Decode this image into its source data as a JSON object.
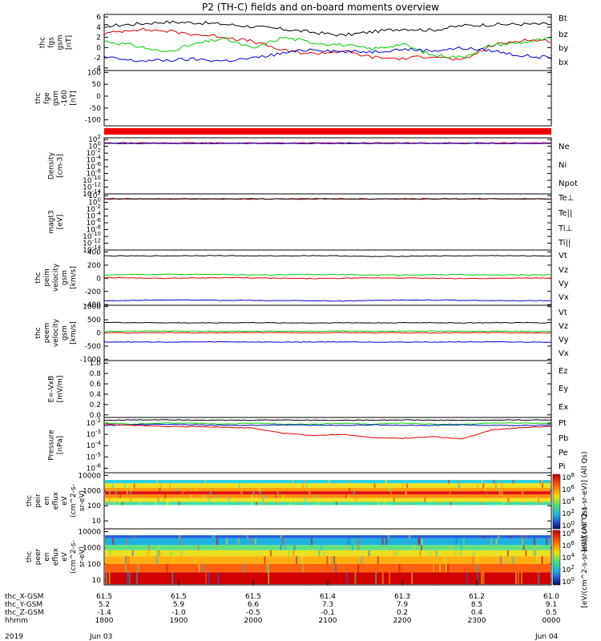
{
  "title": "P2 (TH-C) fields and on-board moments overview",
  "chart_data": [
    {
      "type": "line",
      "ylabel_lines": [
        "thc",
        "fgs",
        "gsm",
        "[nT]"
      ],
      "yticks": [
        "6",
        "4",
        "2",
        "0",
        "-2",
        "-4"
      ],
      "ylim": [
        -4.5,
        6.5
      ],
      "legend": [
        {
          "label": "Bt",
          "color": "#000000"
        },
        {
          "label": "bz",
          "color": "#dd0000"
        },
        {
          "label": "by",
          "color": "#00cc00"
        },
        {
          "label": "bx",
          "color": "#0000cc"
        }
      ],
      "series": [
        {
          "color": "#000000",
          "values": [
            4.2,
            4.6,
            5.0,
            4.9,
            4.6,
            4.1,
            3.6,
            3.0,
            2.4,
            3.1,
            3.7,
            3.4,
            4.3,
            4.5,
            4.6,
            4.6
          ]
        },
        {
          "color": "#dd0000",
          "values": [
            2.7,
            3.6,
            3.3,
            2.6,
            2.1,
            1.2,
            -0.6,
            -1.2,
            -0.7,
            -1.9,
            -2.2,
            -1.6,
            -2.6,
            0.4,
            1.5,
            1.3
          ]
        },
        {
          "color": "#00cc00",
          "values": [
            1.3,
            0.4,
            -0.9,
            0.6,
            1.8,
            -0.2,
            2.0,
            1.0,
            0.5,
            -0.3,
            0.7,
            -1.5,
            -1.9,
            0.5,
            1.0,
            1.8
          ]
        },
        {
          "color": "#0000cc",
          "values": [
            -1.9,
            -2.6,
            -2.5,
            -2.3,
            -2.6,
            -2.1,
            -1.1,
            -0.3,
            -0.8,
            -0.8,
            -0.3,
            -0.6,
            -0.1,
            -0.6,
            -1.6,
            -2.0
          ]
        }
      ]
    },
    {
      "type": "line",
      "ylabel_lines": [
        "thc",
        "fge",
        "gsm",
        "-160",
        "[nT]"
      ],
      "yticks": [
        "100",
        "50",
        "0",
        "-50",
        "-100"
      ],
      "ylim": [
        -125,
        108
      ],
      "legend": [],
      "series": []
    },
    {
      "type": "line",
      "ylabel_lines": [
        "Density",
        "[cm-3]"
      ],
      "yticks": [
        "10^2",
        "10^0",
        "10^-2",
        "10^-4",
        "10^-6",
        "10^-8",
        "10^-10",
        "10^-12",
        "10^-14"
      ],
      "ylim": [
        -14,
        2.5
      ],
      "log": true,
      "legend": [
        {
          "label": "Ne",
          "color": "#dd0000"
        },
        {
          "label": "Ni",
          "color": "#000000"
        },
        {
          "label": "Npot",
          "color": "#0000cc"
        }
      ],
      "series": [
        {
          "color": "#000000",
          "values": [
            0.9,
            0.9,
            0.9,
            0.9,
            0.9,
            0.9,
            0.9,
            0.9
          ]
        },
        {
          "color": "#dd0000",
          "values": [
            1.0,
            1.0,
            1.0,
            1.0,
            1.0,
            1.0,
            1.0,
            1.0
          ]
        },
        {
          "color": "#0000cc",
          "values": [
            0.85,
            0.85,
            0.85,
            0.85,
            0.85,
            0.85,
            0.85,
            0.85
          ]
        }
      ]
    },
    {
      "type": "line",
      "ylabel_lines": [
        "magt3",
        "[eV]"
      ],
      "yticks": [
        "10^2",
        "10^0",
        "10^-2",
        "10^-4",
        "10^-6",
        "10^-8",
        "10^-10",
        "10^-12",
        "10^-14"
      ],
      "ylim": [
        -14,
        2.5
      ],
      "log": true,
      "legend": [
        {
          "label": "Te⊥",
          "color": "#dd0000"
        },
        {
          "label": "Te||",
          "color": "#000000"
        },
        {
          "label": "Ti⊥",
          "color": "#0000cc"
        },
        {
          "label": "Ti||",
          "color": "#00cc00"
        }
      ],
      "series": [
        {
          "color": "#dd0000",
          "values": [
            1.0,
            1.0,
            1.0,
            1.0,
            1.0,
            1.0,
            1.0,
            1.0
          ]
        },
        {
          "color": "#000000",
          "values": [
            1.05,
            1.05,
            1.05,
            1.05,
            1.05,
            1.05,
            1.05,
            1.05
          ]
        }
      ]
    },
    {
      "type": "line",
      "ylabel_lines": [
        "thc",
        "peim",
        "velocity",
        "gsm",
        "[km/s]"
      ],
      "yticks": [
        "400",
        "200",
        "0",
        "-200",
        "-400"
      ],
      "ylim": [
        -410,
        430
      ],
      "legend": [
        {
          "label": "Vt",
          "color": "#000000"
        },
        {
          "label": "Vz",
          "color": "#dd0000"
        },
        {
          "label": "Vy",
          "color": "#00cc00"
        },
        {
          "label": "Vx",
          "color": "#0000cc"
        }
      ],
      "series": [
        {
          "color": "#000000",
          "values": [
            340,
            340,
            340,
            345,
            345,
            340,
            340,
            345,
            340,
            330,
            335,
            340,
            340,
            345,
            340,
            340
          ]
        },
        {
          "color": "#00cc00",
          "values": [
            50,
            55,
            60,
            60,
            55,
            50,
            55,
            60,
            55,
            50,
            50,
            55,
            55,
            50,
            50,
            55
          ]
        },
        {
          "color": "#dd0000",
          "values": [
            10,
            5,
            0,
            5,
            10,
            5,
            0,
            -5,
            0,
            5,
            5,
            0,
            -5,
            0,
            5,
            0
          ]
        },
        {
          "color": "#0000cc",
          "values": [
            -340,
            -335,
            -330,
            -330,
            -335,
            -335,
            -340,
            -340,
            -345,
            -335,
            -330,
            -330,
            -335,
            -340,
            -340,
            -340
          ]
        }
      ]
    },
    {
      "type": "line",
      "ylabel_lines": [
        "thc",
        "peem",
        "velocity",
        "gsm",
        "[km/s]"
      ],
      "yticks": [
        "1000",
        "500",
        "0",
        "-500",
        "-1000"
      ],
      "ylim": [
        -1050,
        1050
      ],
      "legend": [
        {
          "label": "Vt",
          "color": "#000000"
        },
        {
          "label": "Vz",
          "color": "#dd0000"
        },
        {
          "label": "Vy",
          "color": "#00cc00"
        },
        {
          "label": "Vx",
          "color": "#0000cc"
        }
      ],
      "series": [
        {
          "color": "#000000",
          "values": [
            400,
            390,
            385,
            380,
            385,
            390,
            380,
            380,
            385,
            380,
            385,
            390,
            380,
            385,
            390,
            385
          ]
        },
        {
          "color": "#00cc00",
          "values": [
            60,
            70,
            70,
            65,
            60,
            70,
            65,
            60,
            70,
            60,
            65,
            70,
            60,
            65,
            60,
            60
          ]
        },
        {
          "color": "#dd0000",
          "values": [
            10,
            0,
            10,
            5,
            0,
            10,
            5,
            0,
            10,
            5,
            5,
            0,
            5,
            10,
            5,
            0
          ]
        },
        {
          "color": "#0000cc",
          "values": [
            -340,
            -345,
            -350,
            -345,
            -340,
            -345,
            -350,
            -345,
            -340,
            -345,
            -350,
            -345,
            -340,
            -345,
            -350,
            -345
          ]
        }
      ]
    },
    {
      "type": "line",
      "ylabel_lines": [
        "E=-VxB",
        "[mV/m]"
      ],
      "yticks": [
        "1.0",
        "0.8",
        "0.6",
        "0.4",
        "0.2",
        "0.0"
      ],
      "ylim": [
        -0.05,
        1.05
      ],
      "legend": [
        {
          "label": "Ez",
          "color": "#dd0000"
        },
        {
          "label": "Ey",
          "color": "#00cc00"
        },
        {
          "label": "Ex",
          "color": "#0000cc"
        }
      ],
      "series": []
    },
    {
      "type": "line",
      "ylabel_lines": [
        "Pressure",
        "[nPa]"
      ],
      "yticks": [
        "10^-2",
        "10^-3",
        "10^-4",
        "10^-5",
        "10^-6"
      ],
      "ylim": [
        -6.4,
        -1.5
      ],
      "log": true,
      "legend": [
        {
          "label": "Pt",
          "color": "#000000"
        },
        {
          "label": "Pb",
          "color": "#dd0000"
        },
        {
          "label": "Pe",
          "color": "#00cc00"
        },
        {
          "label": "Pi",
          "color": "#0000cc"
        }
      ],
      "series": [
        {
          "color": "#000000",
          "values": [
            -1.75,
            -1.72,
            -1.7,
            -1.72,
            -1.75,
            -1.74,
            -1.72,
            -1.74,
            -1.75,
            -1.73,
            -1.72,
            -1.74,
            -1.75,
            -1.74,
            -1.72,
            -1.73
          ]
        },
        {
          "color": "#00cc00",
          "values": [
            -2.0,
            -2.1,
            -2.0,
            -2.0,
            -2.1,
            -2.0,
            -2.1,
            -2.1,
            -2.0,
            -2.1,
            -2.0,
            -2.1,
            -2.1,
            -2.0,
            -2.0,
            -2.05
          ]
        },
        {
          "color": "#0000cc",
          "values": [
            -2.2,
            -2.15,
            -2.1,
            -2.15,
            -2.2,
            -2.2,
            -2.15,
            -2.2,
            -2.2,
            -2.15,
            -2.2,
            -2.2,
            -2.15,
            -2.2,
            -2.2,
            -2.2
          ]
        },
        {
          "color": "#dd0000",
          "values": [
            -2.1,
            -2.2,
            -2.3,
            -2.3,
            -2.35,
            -2.45,
            -2.9,
            -3.1,
            -3.0,
            -3.3,
            -3.35,
            -3.2,
            -3.4,
            -2.6,
            -2.4,
            -2.3
          ]
        }
      ]
    },
    {
      "type": "heatmap",
      "ylabel_lines": [
        "thc",
        "peir",
        "en",
        "eflux",
        "eV",
        "(cm^2-s-",
        "sr-eV)"
      ],
      "yticks": [
        "10000",
        "1000",
        "100",
        "10"
      ],
      "ylim": [
        3,
        15000
      ],
      "log": true,
      "band": "ions"
    },
    {
      "type": "heatmap",
      "ylabel_lines": [
        "thc",
        "peer",
        "en",
        "eflux",
        "eV",
        "(cm^2-s-",
        "sr-eV)"
      ],
      "yticks": [
        "10000",
        "1000",
        "100",
        "10"
      ],
      "ylim": [
        5,
        15000
      ],
      "log": true,
      "band": "electrons"
    }
  ],
  "colorbars": [
    {
      "label": "[eV/(cm^2-s-sr-eV)] (All Qs)",
      "ticks": [
        "10^8",
        "10^6",
        "10^4",
        "10^2",
        "10^0"
      ]
    },
    {
      "label": "[eV/(cm^2-s-sr-eV)] (All Qs)",
      "ticks": [
        "10^8",
        "10^6",
        "10^4",
        "10^2",
        "10^0"
      ]
    }
  ],
  "xaxis": {
    "rows": [
      {
        "label": "thc_X-GSM",
        "values": [
          "61.5",
          "61.5",
          "61.5",
          "61.4",
          "61.3",
          "61.2",
          "61.0"
        ]
      },
      {
        "label": "thc_Y-GSM",
        "values": [
          "5.2",
          "5.9",
          "6.6",
          "7.3",
          "7.9",
          "8.5",
          "9.1"
        ]
      },
      {
        "label": "thc_Z-GSM",
        "values": [
          "-1.4",
          "-1.0",
          "-0.5",
          "-0.1",
          "0.2",
          "0.4",
          "0.5"
        ]
      },
      {
        "label": "hhmm",
        "values": [
          "1800",
          "1900",
          "2000",
          "2100",
          "2200",
          "2300",
          "0000"
        ]
      }
    ],
    "year": "2019",
    "date_start": "Jun 03",
    "date_end": "Jun 04"
  }
}
